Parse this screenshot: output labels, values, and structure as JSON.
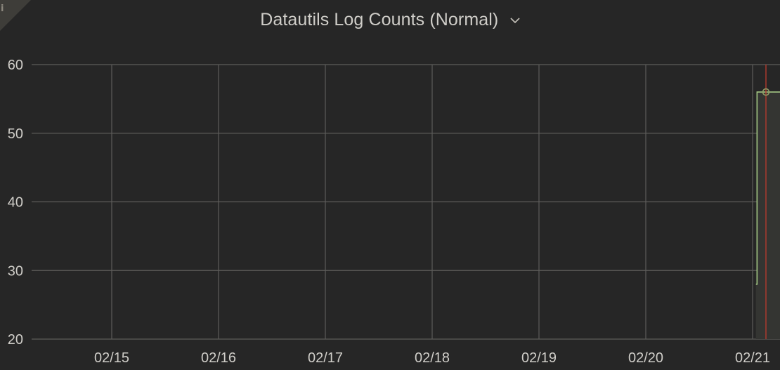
{
  "panel": {
    "title": "Datautils Log Counts (Normal)",
    "title_menu_icon": "chevron-down-icon",
    "corner_icon": "info-icon",
    "corner_glyph": "i"
  },
  "colors": {
    "background": "#262626",
    "grid": "#5d5c5a",
    "text": "#cfcdc8",
    "series": "#a3c784",
    "series_fill": "#343532",
    "marker_line": "#b33a2e",
    "hover_point": "#8f9d66"
  },
  "chart_data": {
    "type": "line",
    "step": true,
    "title": "Datautils Log Counts (Normal)",
    "xlabel": "",
    "ylabel": "",
    "x_ticks": [
      "02/15",
      "02/16",
      "02/17",
      "02/18",
      "02/19",
      "02/20",
      "02/21"
    ],
    "y_ticks": [
      20,
      30,
      40,
      50,
      60
    ],
    "ylim": [
      20,
      60
    ],
    "xlim": [
      "2024-02-14T06:00",
      "2024-02-21T08:00"
    ],
    "grid": true,
    "legend": "none",
    "series": [
      {
        "x": [
          "2024-02-21T00:45",
          "2024-02-21T01:00",
          "2024-02-21T08:00"
        ],
        "values": [
          28,
          56,
          56
        ]
      }
    ],
    "marker": {
      "x": "2024-02-21T03:00"
    },
    "hover_point": {
      "x": "2024-02-21T03:00",
      "y": 56
    }
  }
}
